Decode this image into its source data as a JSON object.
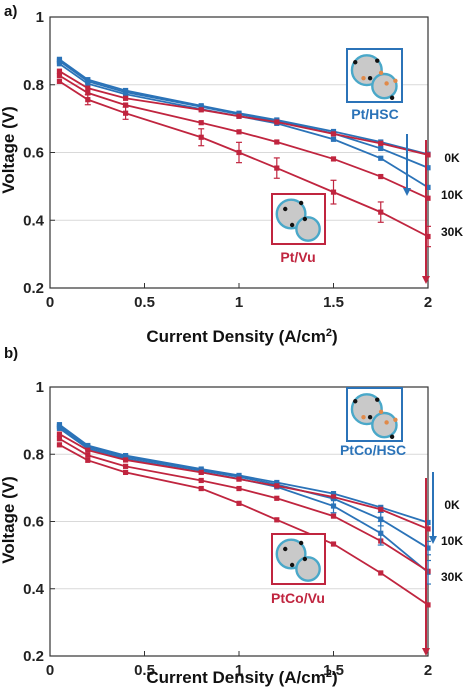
{
  "colors": {
    "hsc": "#2b73b8",
    "vu": "#c0253f",
    "grid": "#d9d9d9",
    "inset_fill": "#c9c9c9",
    "inset_outline": "#4aa8c9",
    "dot_black": "#111111",
    "dot_orange": "#e08a4a"
  },
  "chart_data": [
    {
      "type": "line",
      "panel_label": "a)",
      "xlabel": "Current Density (A/cm",
      "xlabel_sup": "2",
      "xlabel_close": ")",
      "ylabel": "Voltage (V)",
      "xlim": [
        0,
        2
      ],
      "ylim": [
        0.2,
        1.0
      ],
      "xticks": [
        0,
        0.5,
        1,
        1.5,
        2
      ],
      "xtick_labels": [
        "0",
        "0.5",
        "1",
        "1.5",
        "2"
      ],
      "yticks": [
        0.2,
        0.4,
        0.6,
        0.8,
        1.0
      ],
      "ytick_labels": [
        "0.2",
        "0.4",
        "0.6",
        "0.8",
        "1"
      ],
      "grid": "horizontal",
      "x": [
        0.05,
        0.2,
        0.4,
        0.8,
        1.0,
        1.2,
        1.5,
        1.75,
        2.0
      ],
      "series": [
        {
          "group": "hsc",
          "values": [
            0.875,
            0.815,
            0.783,
            0.738,
            0.716,
            0.696,
            0.662,
            0.631,
            0.595
          ]
        },
        {
          "group": "hsc",
          "values": [
            0.87,
            0.81,
            0.778,
            0.735,
            0.713,
            0.693,
            0.656,
            0.612,
            0.555
          ]
        },
        {
          "group": "hsc",
          "values": [
            0.862,
            0.803,
            0.772,
            0.728,
            0.707,
            0.686,
            0.639,
            0.583,
            0.497
          ]
        },
        {
          "group": "vu",
          "values": [
            0.84,
            0.79,
            0.76,
            0.726,
            0.707,
            0.69,
            0.655,
            0.627,
            0.593
          ]
        },
        {
          "group": "vu",
          "values": [
            0.827,
            0.776,
            0.74,
            0.688,
            0.661,
            0.631,
            0.581,
            0.529,
            0.465
          ]
        },
        {
          "group": "vu",
          "values": [
            0.81,
            0.756,
            0.716,
            0.645,
            0.6,
            0.554,
            0.483,
            0.424,
            0.352
          ]
        }
      ],
      "error_bars": [
        {
          "series": 5,
          "x": [
            0.2,
            0.4,
            0.8,
            1.0,
            1.2,
            1.5,
            1.75,
            2.0
          ],
          "err": [
            0.015,
            0.018,
            0.025,
            0.03,
            0.03,
            0.035,
            0.03,
            0.03
          ]
        }
      ],
      "inset_top": {
        "label": "Pt/HSC"
      },
      "inset_bottom": {
        "label": "Pt/Vu"
      },
      "stress_labels": [
        "0K",
        "10K",
        "30K"
      ]
    },
    {
      "type": "line",
      "panel_label": "b)",
      "xlabel": "Current Density (A/cm",
      "xlabel_sup": "2",
      "xlabel_close": ")",
      "ylabel": "Voltage (V)",
      "xlim": [
        0,
        2
      ],
      "ylim": [
        0.2,
        1.0
      ],
      "xticks": [
        0,
        0.5,
        1,
        1.5,
        2
      ],
      "xtick_labels": [
        "0",
        "0.5",
        "1",
        "1.5",
        "2"
      ],
      "yticks": [
        0.2,
        0.4,
        0.6,
        0.8,
        1.0
      ],
      "ytick_labels": [
        "0.2",
        "0.4",
        "0.6",
        "0.8",
        "1"
      ],
      "grid": "horizontal",
      "x": [
        0.05,
        0.2,
        0.4,
        0.8,
        1.0,
        1.2,
        1.5,
        1.75,
        2.0
      ],
      "series": [
        {
          "group": "hsc",
          "values": [
            0.888,
            0.826,
            0.796,
            0.756,
            0.737,
            0.716,
            0.683,
            0.642,
            0.597
          ]
        },
        {
          "group": "hsc",
          "values": [
            0.883,
            0.822,
            0.792,
            0.752,
            0.733,
            0.71,
            0.668,
            0.607,
            0.521
          ]
        },
        {
          "group": "hsc",
          "values": [
            0.877,
            0.817,
            0.787,
            0.747,
            0.727,
            0.703,
            0.646,
            0.565,
            0.449
          ]
        },
        {
          "group": "vu",
          "values": [
            0.86,
            0.812,
            0.783,
            0.746,
            0.726,
            0.706,
            0.673,
            0.636,
            0.578
          ]
        },
        {
          "group": "vu",
          "values": [
            0.846,
            0.797,
            0.764,
            0.722,
            0.698,
            0.669,
            0.616,
            0.542,
            0.452
          ]
        },
        {
          "group": "vu",
          "values": [
            0.828,
            0.782,
            0.746,
            0.698,
            0.654,
            0.605,
            0.533,
            0.447,
            0.352
          ]
        }
      ],
      "error_bars": [
        {
          "series": 2,
          "x": [
            1.5,
            1.75,
            2.0
          ],
          "err": [
            0.02,
            0.035,
            0.035
          ]
        },
        {
          "series": 1,
          "x": [
            1.75,
            2.0
          ],
          "err": [
            0.02,
            0.02
          ]
        }
      ],
      "inset_top": {
        "label": "PtCo/HSC"
      },
      "inset_bottom": {
        "label": "PtCo/Vu"
      },
      "stress_labels": [
        "0K",
        "10K",
        "30K"
      ]
    }
  ]
}
